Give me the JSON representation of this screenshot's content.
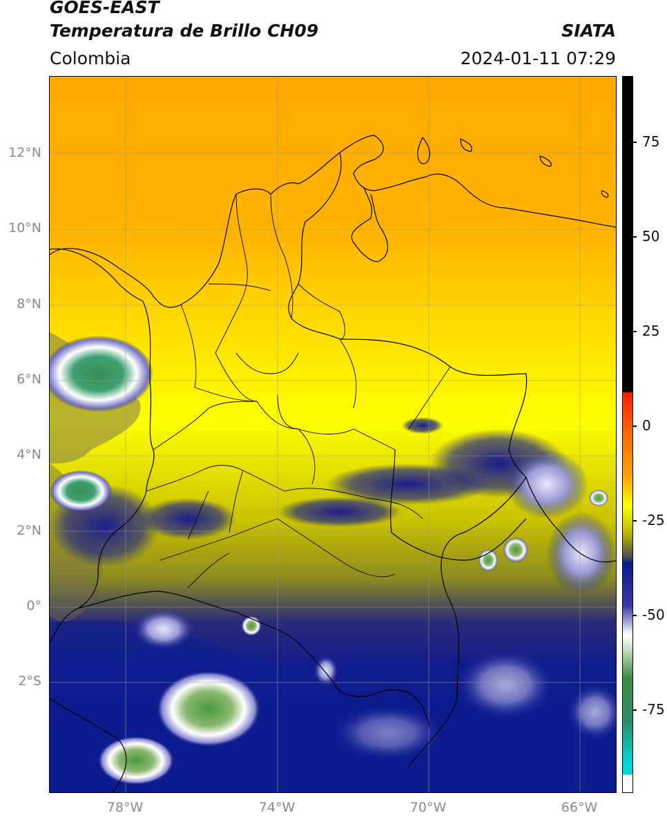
{
  "header": {
    "satellite": "GOES-EAST",
    "product": "Temperatura de Brillo CH09",
    "region": "Colombia",
    "organization": "SIATA",
    "timestamp": "2024-01-11 07:29"
  },
  "axes": {
    "latitude_labels": [
      "12°N",
      "10°N",
      "8°N",
      "6°N",
      "4°N",
      "2°N",
      "0°",
      "2°S"
    ],
    "longitude_labels": [
      "78°W",
      "74°W",
      "70°W",
      "66°W"
    ]
  },
  "colorbar": {
    "tick_labels": [
      "75",
      "50",
      "25",
      "0",
      "-25",
      "-50",
      "-75"
    ],
    "range": [
      -95,
      90
    ]
  },
  "colors": {
    "warm_orange": "#FFA500",
    "yellow": "#FFFF00",
    "olive": "#B8B000",
    "navy": "#0A1A8C",
    "white": "#FFFFFF",
    "green": "#3C8C3C",
    "cyan": "#00D8D8",
    "red": "#FF2000",
    "black": "#000000"
  }
}
